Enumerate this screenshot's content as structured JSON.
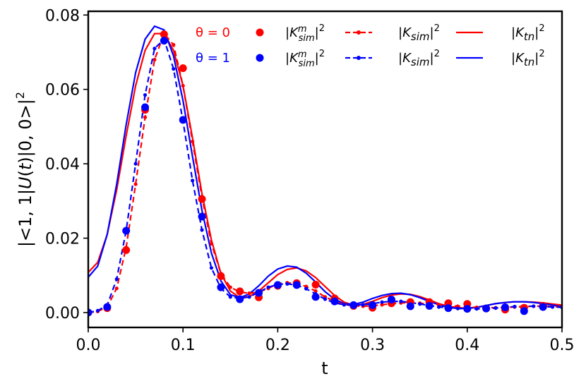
{
  "chart_data": {
    "type": "line",
    "title": "",
    "xlabel": "t",
    "ylabel": "|<1,1|U(t)|0,0>|²",
    "xlim": [
      0.0,
      0.5
    ],
    "ylim": [
      -0.004,
      0.081
    ],
    "x_ticks": [
      0.0,
      0.1,
      0.2,
      0.3,
      0.4,
      0.5
    ],
    "x_tick_labels": [
      "0.0",
      "0.1",
      "0.2",
      "0.3",
      "0.4",
      "0.5"
    ],
    "y_ticks": [
      0.0,
      0.02,
      0.04,
      0.06,
      0.08
    ],
    "y_tick_labels": [
      "0.00",
      "0.02",
      "0.04",
      "0.06",
      "0.08"
    ],
    "grid": false,
    "legend_position": "top",
    "theta_labels": [
      {
        "text": "θ = 0",
        "color": "#ff0000"
      },
      {
        "text": "θ = 1",
        "color": "#0000ff"
      }
    ],
    "legend_columns": [
      {
        "label": "|K^m_sim|²",
        "style": "markers"
      },
      {
        "label": "|K_sim|²",
        "style": "dashed-markers"
      },
      {
        "label": "|K_tn|²",
        "style": "solid"
      }
    ],
    "series": [
      {
        "group": "theta0",
        "kind": "markers",
        "color": "#ff0000",
        "x": [
          0.0,
          0.02,
          0.04,
          0.06,
          0.08,
          0.1,
          0.12,
          0.14,
          0.16,
          0.18,
          0.2,
          0.22,
          0.24,
          0.26,
          0.28,
          0.3,
          0.32,
          0.34,
          0.36,
          0.38,
          0.4,
          0.42,
          0.44,
          0.46,
          0.48
        ],
        "y": [
          0.0,
          0.0012,
          0.0168,
          0.0545,
          0.0748,
          0.0657,
          0.0305,
          0.0098,
          0.0057,
          0.0041,
          0.0072,
          0.0079,
          0.0075,
          0.0038,
          0.0018,
          0.0013,
          0.0025,
          0.0028,
          0.0028,
          0.0025,
          0.0023,
          0.0011,
          0.0008,
          0.0013,
          0.0018
        ]
      },
      {
        "group": "theta1",
        "kind": "markers",
        "color": "#0000ff",
        "x": [
          0.0,
          0.02,
          0.04,
          0.06,
          0.08,
          0.1,
          0.12,
          0.14,
          0.16,
          0.18,
          0.2,
          0.22,
          0.24,
          0.26,
          0.28,
          0.3,
          0.32,
          0.34,
          0.36,
          0.38,
          0.4,
          0.42,
          0.44,
          0.46,
          0.48
        ],
        "y": [
          0.0,
          0.0015,
          0.022,
          0.0552,
          0.0731,
          0.0518,
          0.0258,
          0.0068,
          0.0036,
          0.0053,
          0.0074,
          0.0074,
          0.0042,
          0.003,
          0.002,
          0.002,
          0.0035,
          0.0017,
          0.0018,
          0.0012,
          0.001,
          0.0011,
          0.0014,
          0.0004,
          0.0015
        ]
      },
      {
        "group": "theta0",
        "kind": "dashed-markers",
        "color": "#ff0000",
        "x": [
          0.0,
          0.01,
          0.02,
          0.03,
          0.04,
          0.05,
          0.06,
          0.07,
          0.08,
          0.09,
          0.1,
          0.11,
          0.12,
          0.13,
          0.14,
          0.15,
          0.16,
          0.17,
          0.18,
          0.19,
          0.2,
          0.21,
          0.22,
          0.23,
          0.24,
          0.25,
          0.26,
          0.27,
          0.28,
          0.29,
          0.3,
          0.31,
          0.32,
          0.33,
          0.34,
          0.35,
          0.36,
          0.37,
          0.38,
          0.39,
          0.4,
          0.41,
          0.42,
          0.43,
          0.44,
          0.45,
          0.46,
          0.47,
          0.48,
          0.49,
          0.5
        ],
        "y": [
          0.0,
          0.0003,
          0.0015,
          0.0065,
          0.0175,
          0.0345,
          0.0525,
          0.068,
          0.075,
          0.072,
          0.061,
          0.046,
          0.031,
          0.0185,
          0.0105,
          0.0068,
          0.0055,
          0.0052,
          0.0055,
          0.0065,
          0.0078,
          0.008,
          0.0078,
          0.007,
          0.0058,
          0.0042,
          0.003,
          0.0022,
          0.0018,
          0.0017,
          0.0018,
          0.0021,
          0.0024,
          0.0026,
          0.0026,
          0.0025,
          0.0023,
          0.0021,
          0.0019,
          0.0017,
          0.0015,
          0.0014,
          0.0013,
          0.0013,
          0.0014,
          0.0015,
          0.0016,
          0.0017,
          0.0017,
          0.0016,
          0.0015
        ]
      },
      {
        "group": "theta1",
        "kind": "dashed-markers",
        "color": "#0000ff",
        "x": [
          0.0,
          0.01,
          0.02,
          0.03,
          0.04,
          0.05,
          0.06,
          0.07,
          0.08,
          0.09,
          0.1,
          0.11,
          0.12,
          0.13,
          0.14,
          0.15,
          0.16,
          0.17,
          0.18,
          0.19,
          0.2,
          0.21,
          0.22,
          0.23,
          0.24,
          0.25,
          0.26,
          0.27,
          0.28,
          0.29,
          0.3,
          0.31,
          0.32,
          0.33,
          0.34,
          0.35,
          0.36,
          0.37,
          0.38,
          0.39,
          0.4,
          0.41,
          0.42,
          0.43,
          0.44,
          0.45,
          0.46,
          0.47,
          0.48,
          0.49,
          0.5
        ],
        "y": [
          0.0,
          0.0005,
          0.002,
          0.009,
          0.022,
          0.04,
          0.0585,
          0.071,
          0.0735,
          0.0655,
          0.0515,
          0.0355,
          0.0222,
          0.012,
          0.0065,
          0.0042,
          0.0038,
          0.0042,
          0.0055,
          0.0068,
          0.0076,
          0.0077,
          0.0074,
          0.0064,
          0.005,
          0.0036,
          0.0026,
          0.0021,
          0.002,
          0.0021,
          0.0024,
          0.0028,
          0.003,
          0.003,
          0.0027,
          0.0023,
          0.0019,
          0.0015,
          0.0013,
          0.0011,
          0.001,
          0.001,
          0.0011,
          0.0012,
          0.0014,
          0.0016,
          0.0017,
          0.0017,
          0.0016,
          0.0015,
          0.0014
        ]
      },
      {
        "group": "theta0",
        "kind": "solid",
        "color": "#ff0000",
        "x": [
          0.0,
          0.01,
          0.02,
          0.03,
          0.04,
          0.05,
          0.06,
          0.07,
          0.08,
          0.09,
          0.1,
          0.11,
          0.12,
          0.13,
          0.14,
          0.15,
          0.16,
          0.17,
          0.18,
          0.19,
          0.2,
          0.21,
          0.22,
          0.23,
          0.24,
          0.25,
          0.26,
          0.27,
          0.28,
          0.29,
          0.3,
          0.31,
          0.32,
          0.33,
          0.34,
          0.35,
          0.36,
          0.37,
          0.38,
          0.39,
          0.4,
          0.41,
          0.42,
          0.43,
          0.44,
          0.45,
          0.46,
          0.47,
          0.48,
          0.49,
          0.5
        ],
        "y": [
          0.0108,
          0.0135,
          0.021,
          0.033,
          0.0475,
          0.061,
          0.0705,
          0.075,
          0.075,
          0.0705,
          0.061,
          0.047,
          0.032,
          0.0195,
          0.0105,
          0.0058,
          0.004,
          0.0043,
          0.0058,
          0.008,
          0.0102,
          0.0116,
          0.012,
          0.0112,
          0.0094,
          0.007,
          0.0046,
          0.0028,
          0.002,
          0.0022,
          0.003,
          0.004,
          0.0047,
          0.005,
          0.0049,
          0.0043,
          0.0034,
          0.0024,
          0.0017,
          0.0013,
          0.0012,
          0.0014,
          0.0019,
          0.0024,
          0.0027,
          0.0029,
          0.0029,
          0.0028,
          0.0026,
          0.0023,
          0.002
        ]
      },
      {
        "group": "theta1",
        "kind": "solid",
        "color": "#0000ff",
        "x": [
          0.0,
          0.01,
          0.02,
          0.03,
          0.04,
          0.05,
          0.06,
          0.07,
          0.08,
          0.09,
          0.1,
          0.11,
          0.12,
          0.13,
          0.14,
          0.15,
          0.16,
          0.17,
          0.18,
          0.19,
          0.2,
          0.21,
          0.22,
          0.23,
          0.24,
          0.25,
          0.26,
          0.27,
          0.28,
          0.29,
          0.3,
          0.31,
          0.32,
          0.33,
          0.34,
          0.35,
          0.36,
          0.37,
          0.38,
          0.39,
          0.4,
          0.41,
          0.42,
          0.43,
          0.44,
          0.45,
          0.46,
          0.47,
          0.48,
          0.49,
          0.5
        ],
        "y": [
          0.0095,
          0.0125,
          0.021,
          0.0345,
          0.0505,
          0.0645,
          0.0735,
          0.077,
          0.076,
          0.069,
          0.057,
          0.042,
          0.0275,
          0.016,
          0.0085,
          0.0048,
          0.004,
          0.005,
          0.0072,
          0.0098,
          0.0117,
          0.0125,
          0.0122,
          0.0106,
          0.0082,
          0.0056,
          0.0036,
          0.0024,
          0.0022,
          0.0028,
          0.0038,
          0.0046,
          0.0051,
          0.0052,
          0.0048,
          0.004,
          0.003,
          0.0021,
          0.0014,
          0.0011,
          0.0011,
          0.0014,
          0.0019,
          0.0024,
          0.0027,
          0.0029,
          0.0029,
          0.0027,
          0.0024,
          0.002,
          0.0016
        ]
      }
    ]
  }
}
